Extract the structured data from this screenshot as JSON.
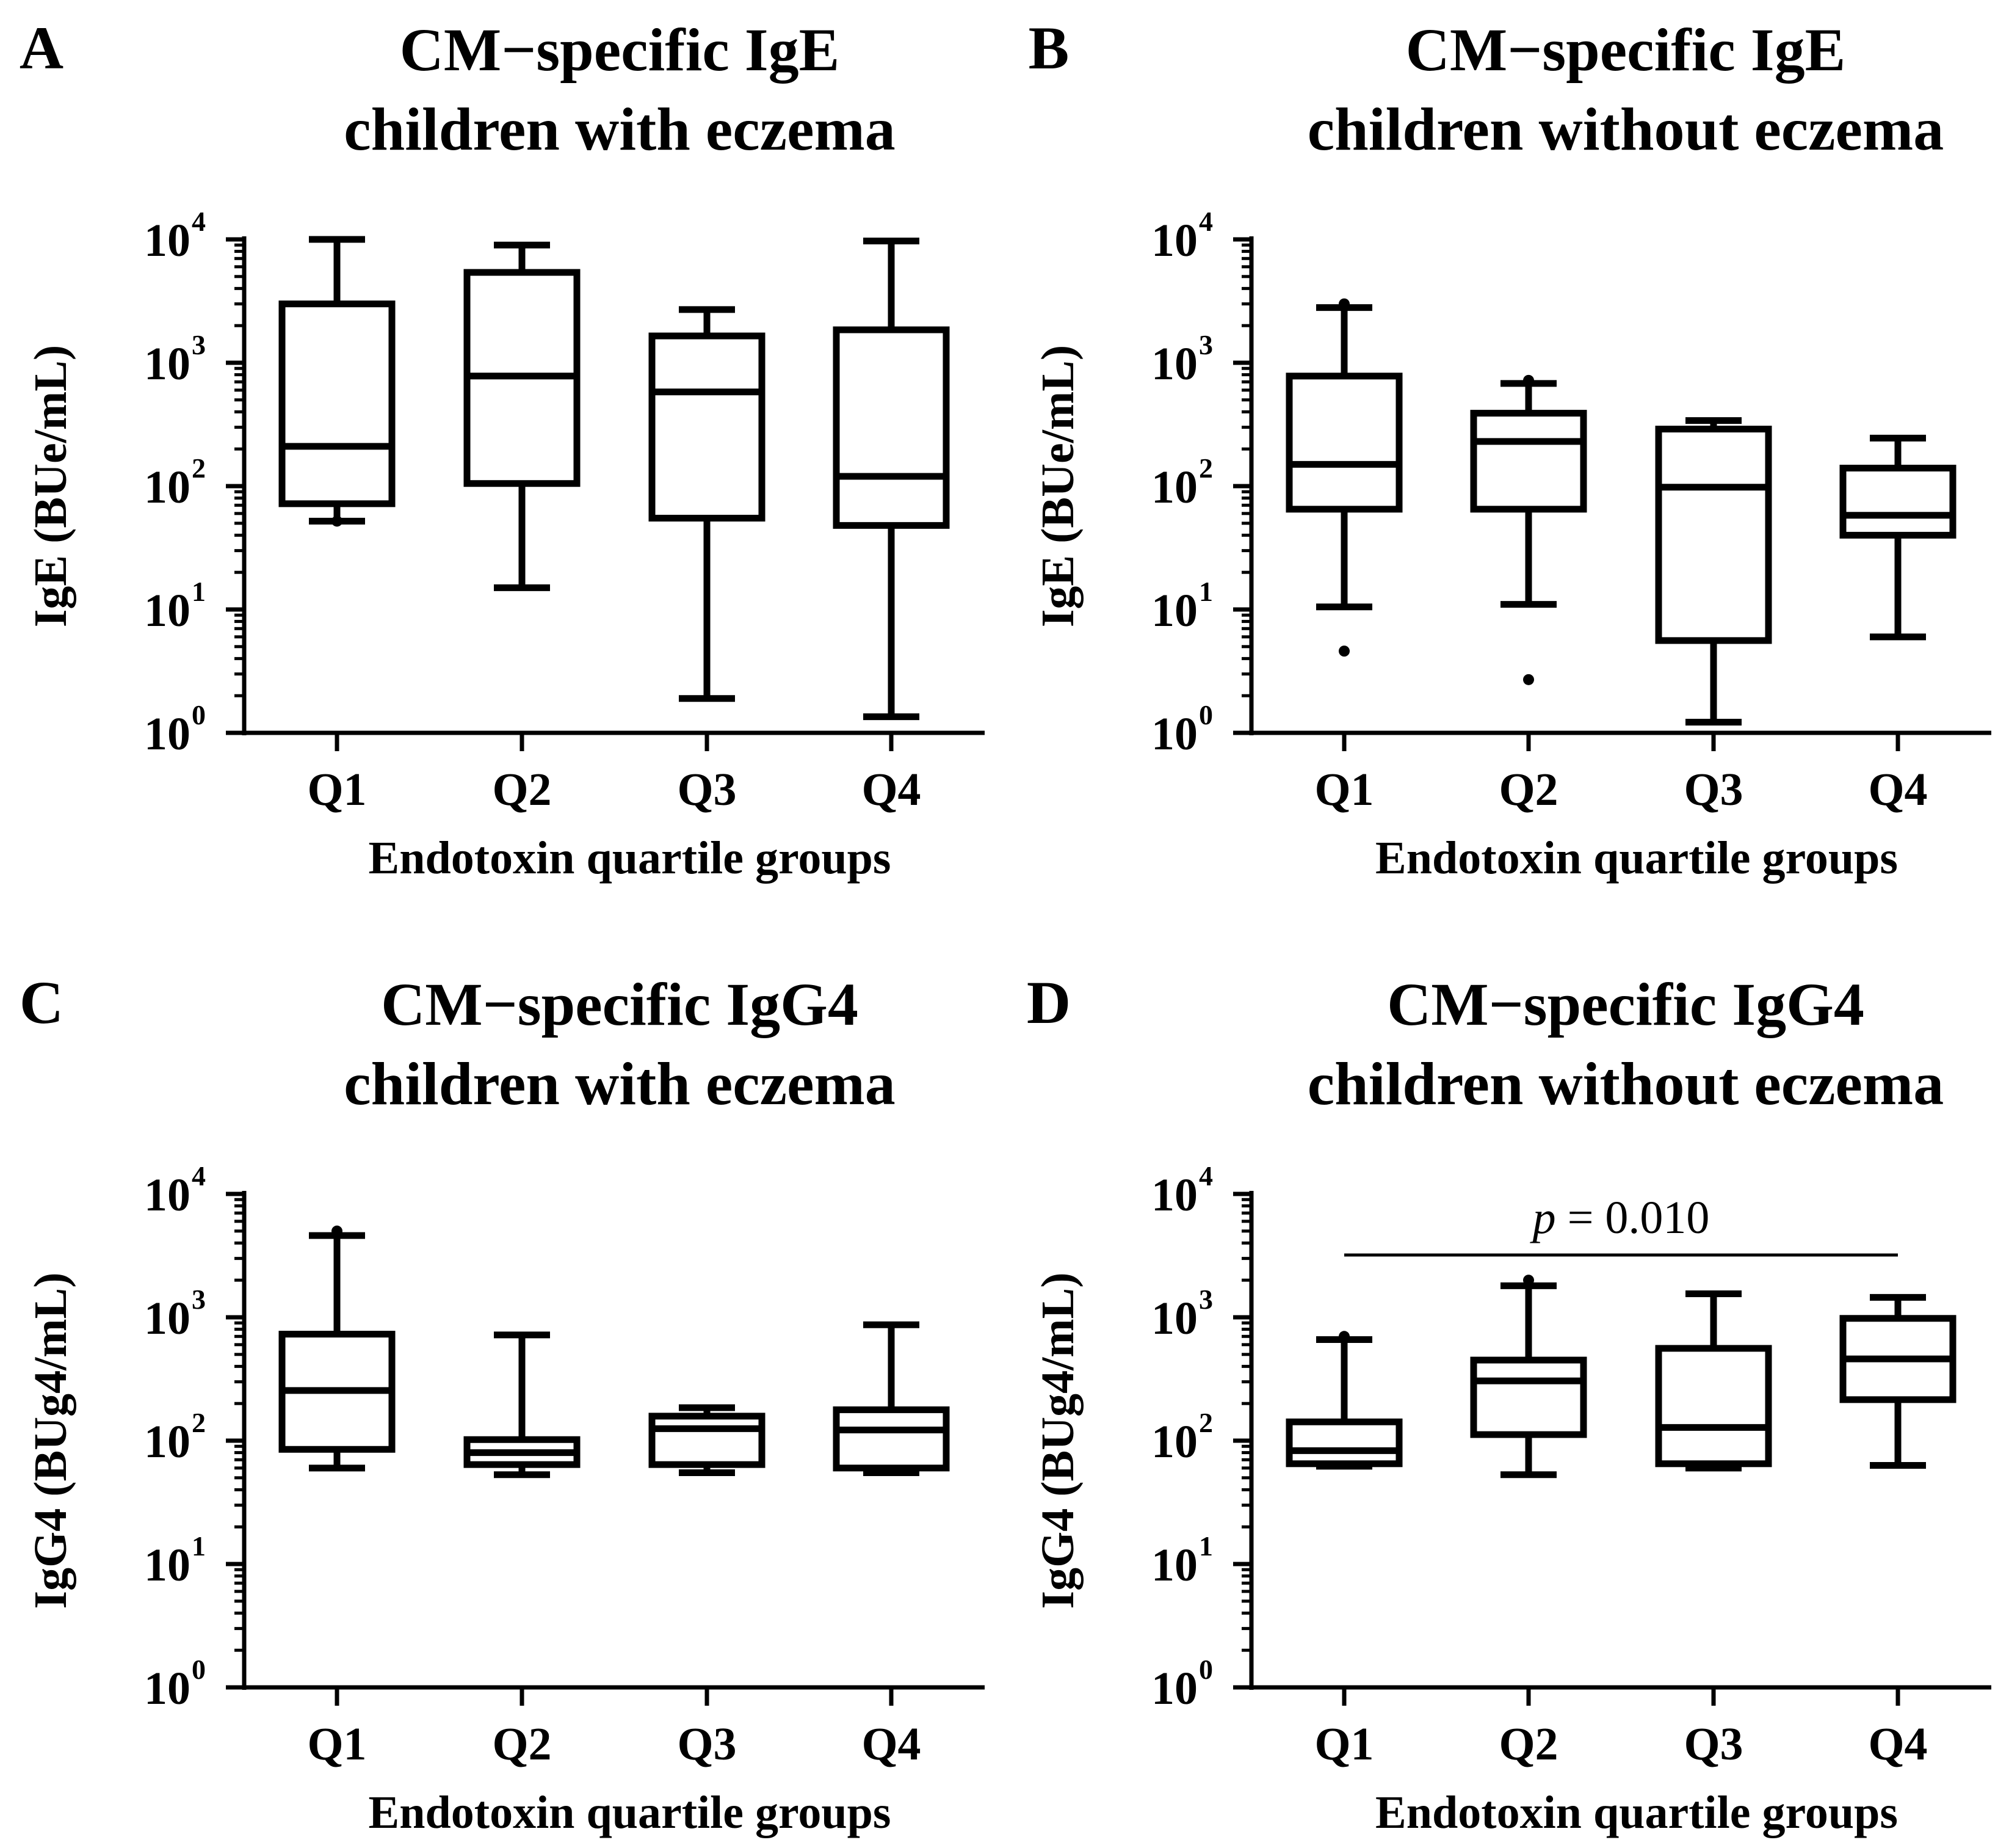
{
  "chart_data": [
    {
      "panel": "A",
      "type": "box",
      "title": [
        "CM−specific IgE",
        "children with eczema"
      ],
      "xlabel": "Endotoxin quartile groups",
      "ylabel": "IgE (BUe/mL)",
      "yscale": "log10",
      "ylim": [
        1,
        10000
      ],
      "yticks": [
        {
          "base": "10",
          "exp": "0"
        },
        {
          "base": "10",
          "exp": "1"
        },
        {
          "base": "10",
          "exp": "2"
        },
        {
          "base": "10",
          "exp": "3"
        },
        {
          "base": "10",
          "exp": "4"
        }
      ],
      "categories": [
        "Q1",
        "Q2",
        "Q3",
        "Q4"
      ],
      "boxes": [
        {
          "whisker_low": 52,
          "q1": 72,
          "median": 210,
          "q3": 3000,
          "whisker_high": 10000,
          "outliers": [
            52
          ]
        },
        {
          "whisker_low": 15,
          "q1": 105,
          "median": 780,
          "q3": 5400,
          "whisker_high": 9000,
          "outliers": []
        },
        {
          "whisker_low": 1.9,
          "q1": 55,
          "median": 580,
          "q3": 1650,
          "whisker_high": 2700,
          "outliers": []
        },
        {
          "whisker_low": 1.35,
          "q1": 48,
          "median": 120,
          "q3": 1850,
          "whisker_high": 9700,
          "outliers": []
        }
      ]
    },
    {
      "panel": "B",
      "type": "box",
      "title": [
        "CM−specific IgE",
        "children without eczema"
      ],
      "xlabel": "Endotoxin quartile groups",
      "ylabel": "IgE (BUe/mL)",
      "yscale": "log10",
      "ylim": [
        1,
        10000
      ],
      "yticks": [
        {
          "base": "10",
          "exp": "0"
        },
        {
          "base": "10",
          "exp": "1"
        },
        {
          "base": "10",
          "exp": "2"
        },
        {
          "base": "10",
          "exp": "3"
        },
        {
          "base": "10",
          "exp": "4"
        }
      ],
      "categories": [
        "Q1",
        "Q2",
        "Q3",
        "Q4"
      ],
      "boxes": [
        {
          "whisker_low": 10.5,
          "q1": 65,
          "median": 150,
          "q3": 780,
          "whisker_high": 2800,
          "outliers": [
            3000,
            4.6
          ]
        },
        {
          "whisker_low": 11,
          "q1": 65,
          "median": 230,
          "q3": 390,
          "whisker_high": 680,
          "outliers": [
            720,
            2.7
          ]
        },
        {
          "whisker_low": 1.22,
          "q1": 5.6,
          "median": 98,
          "q3": 290,
          "whisker_high": 340,
          "outliers": []
        },
        {
          "whisker_low": 6,
          "q1": 40,
          "median": 58,
          "q3": 140,
          "whisker_high": 245,
          "outliers": []
        }
      ]
    },
    {
      "panel": "C",
      "type": "box",
      "title": [
        "CM−specific IgG4",
        "children with eczema"
      ],
      "xlabel": "Endotoxin quartile groups",
      "ylabel": "IgG4 (BUg4/mL)",
      "yscale": "log10",
      "ylim": [
        1,
        10000
      ],
      "yticks": [
        {
          "base": "10",
          "exp": "0"
        },
        {
          "base": "10",
          "exp": "1"
        },
        {
          "base": "10",
          "exp": "2"
        },
        {
          "base": "10",
          "exp": "3"
        },
        {
          "base": "10",
          "exp": "4"
        }
      ],
      "categories": [
        "Q1",
        "Q2",
        "Q3",
        "Q4"
      ],
      "boxes": [
        {
          "whisker_low": 60,
          "q1": 85,
          "median": 255,
          "q3": 730,
          "whisker_high": 4600,
          "outliers": [
            5000
          ]
        },
        {
          "whisker_low": 53,
          "q1": 64,
          "median": 80,
          "q3": 102,
          "whisker_high": 720,
          "outliers": []
        },
        {
          "whisker_low": 55,
          "q1": 64,
          "median": 125,
          "q3": 158,
          "whisker_high": 185,
          "outliers": []
        },
        {
          "whisker_low": 55,
          "q1": 60,
          "median": 122,
          "q3": 178,
          "whisker_high": 870,
          "outliers": []
        }
      ]
    },
    {
      "panel": "D",
      "type": "box",
      "title": [
        "CM−specific IgG4",
        "children without eczema"
      ],
      "xlabel": "Endotoxin quartile groups",
      "ylabel": "IgG4 (BUg4/mL)",
      "yscale": "log10",
      "ylim": [
        1,
        10000
      ],
      "yticks": [
        {
          "base": "10",
          "exp": "0"
        },
        {
          "base": "10",
          "exp": "1"
        },
        {
          "base": "10",
          "exp": "2"
        },
        {
          "base": "10",
          "exp": "3"
        },
        {
          "base": "10",
          "exp": "4"
        }
      ],
      "categories": [
        "Q1",
        "Q2",
        "Q3",
        "Q4"
      ],
      "boxes": [
        {
          "whisker_low": 62,
          "q1": 65,
          "median": 83,
          "q3": 142,
          "whisker_high": 660,
          "outliers": [
            700
          ]
        },
        {
          "whisker_low": 53,
          "q1": 112,
          "median": 305,
          "q3": 450,
          "whisker_high": 1800,
          "outliers": [
            2000
          ]
        },
        {
          "whisker_low": 60,
          "q1": 65,
          "median": 128,
          "q3": 560,
          "whisker_high": 1550,
          "outliers": []
        },
        {
          "whisker_low": 63,
          "q1": 215,
          "median": 460,
          "q3": 980,
          "whisker_high": 1450,
          "outliers": []
        }
      ],
      "annotation": {
        "text_italic": "p",
        "text": " = 0.010",
        "from": "Q1",
        "to": "Q4",
        "y": 3200
      }
    }
  ]
}
